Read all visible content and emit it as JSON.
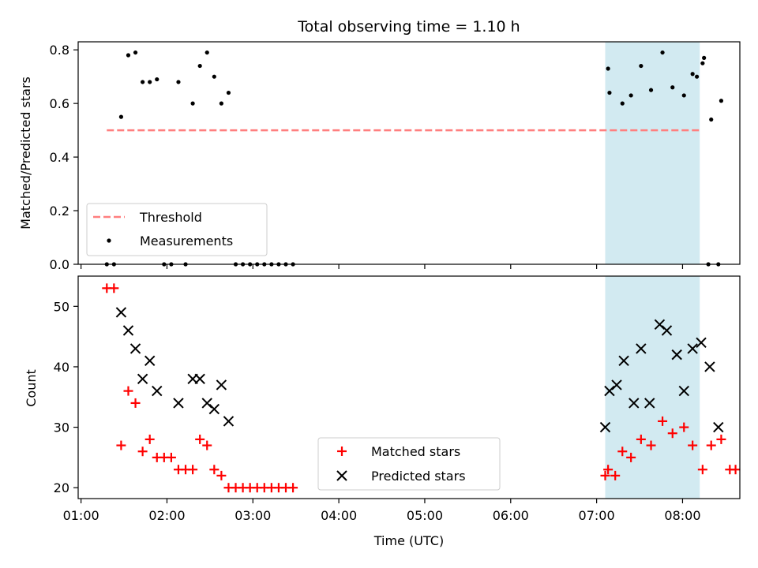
{
  "chart_data": [
    {
      "type": "scatter",
      "title": "Total observing time = 1.10 h",
      "xlabel": "",
      "ylabel": "Matched/Predicted stars",
      "ylim": [
        0,
        0.83
      ],
      "yticks": [
        "0.0",
        "0.2",
        "0.4",
        "0.6",
        "0.8"
      ],
      "ytick_values": [
        0.0,
        0.2,
        0.4,
        0.6,
        0.8
      ],
      "xlim": [
        "00:58",
        "08:40"
      ],
      "shaded_span": [
        "07:06",
        "08:12"
      ],
      "shaded_color": "#add8e6",
      "threshold": {
        "name": "Threshold",
        "value": 0.5,
        "x_start": "01:18",
        "x_end": "08:12",
        "color": "#ff7f7f"
      },
      "series": [
        {
          "name": "Measurements",
          "color": "#000000",
          "x": [
            "01:18",
            "01:23",
            "01:28",
            "01:33",
            "01:38",
            "01:43",
            "01:48",
            "01:53",
            "01:58",
            "02:03",
            "02:08",
            "02:13",
            "02:18",
            "02:23",
            "02:28",
            "02:33",
            "02:38",
            "02:43",
            "02:48",
            "02:53",
            "02:58",
            "03:03",
            "03:08",
            "03:13",
            "03:18",
            "03:23",
            "03:28",
            "07:08",
            "07:09",
            "07:18",
            "07:24",
            "07:31",
            "07:38",
            "07:46",
            "07:53",
            "08:01",
            "08:07",
            "08:14",
            "08:20",
            "08:27"
          ],
          "y": [
            0.0,
            0.0,
            0.55,
            0.78,
            0.79,
            0.68,
            0.68,
            0.69,
            0.0,
            0.0,
            0.68,
            0.0,
            0.6,
            0.74,
            0.79,
            0.7,
            0.6,
            0.64,
            0.0,
            0.0,
            0.0,
            0.0,
            0.0,
            0.0,
            0.0,
            0.0,
            0.0,
            0.73,
            0.64,
            0.6,
            0.63,
            0.74,
            0.65,
            0.79,
            0.66,
            0.63,
            0.71,
            0.75,
            0.54,
            0.61
          ],
          "extra_x": [
            "08:10",
            "08:15",
            "08:18",
            "08:25"
          ],
          "extra_y": [
            0.7,
            0.77,
            0.0,
            0.0
          ]
        }
      ],
      "legend": {
        "position": "lower-left",
        "entries": [
          "Threshold",
          "Measurements"
        ]
      }
    },
    {
      "type": "scatter",
      "title": "",
      "xlabel": "Time (UTC)",
      "ylabel": "Count",
      "ylim": [
        18.2,
        55
      ],
      "yticks": [
        "20",
        "30",
        "40",
        "50"
      ],
      "ytick_values": [
        20,
        30,
        40,
        50
      ],
      "xlim": [
        "00:58",
        "08:40"
      ],
      "xticks": [
        "01:00",
        "02:00",
        "03:00",
        "04:00",
        "05:00",
        "06:00",
        "07:00",
        "08:00"
      ],
      "shaded_span": [
        "07:06",
        "08:12"
      ],
      "shaded_color": "#add8e6",
      "series": [
        {
          "name": "Matched stars",
          "marker": "plus",
          "color": "#ff0000",
          "x": [
            "01:18",
            "01:23",
            "01:28",
            "01:33",
            "01:38",
            "01:43",
            "01:48",
            "01:53",
            "01:58",
            "02:03",
            "02:08",
            "02:13",
            "02:18",
            "02:23",
            "02:28",
            "02:33",
            "02:38",
            "02:43",
            "02:48",
            "02:53",
            "02:58",
            "03:03",
            "03:08",
            "03:13",
            "03:18",
            "03:23",
            "03:28",
            "07:06",
            "07:08",
            "07:13",
            "07:18",
            "07:24",
            "07:31",
            "07:38",
            "07:46",
            "07:53",
            "08:01",
            "08:07",
            "08:14",
            "08:20",
            "08:27",
            "08:33"
          ],
          "y": [
            53,
            53,
            27,
            36,
            34,
            26,
            28,
            25,
            25,
            25,
            23,
            23,
            23,
            28,
            27,
            23,
            22,
            20,
            20,
            20,
            20,
            20,
            20,
            20,
            20,
            20,
            20,
            22,
            23,
            22,
            26,
            25,
            28,
            27,
            31,
            29,
            30,
            27,
            23,
            27,
            28,
            23
          ]
        },
        {
          "name": "Predicted stars",
          "marker": "x",
          "color": "#000000",
          "x": [
            "01:28",
            "01:33",
            "01:38",
            "01:43",
            "01:48",
            "01:53",
            "02:08",
            "02:18",
            "02:23",
            "02:28",
            "02:33",
            "02:38",
            "02:43",
            "07:06",
            "07:09",
            "07:14",
            "07:19",
            "07:26",
            "07:31",
            "07:37",
            "07:44",
            "07:49",
            "07:56",
            "08:01",
            "08:07",
            "08:13",
            "08:19"
          ],
          "y": [
            49,
            46,
            43,
            38,
            41,
            36,
            34,
            38,
            38,
            34,
            33,
            37,
            31,
            30,
            36,
            37,
            41,
            34,
            43,
            34,
            47,
            46,
            42,
            36,
            43,
            44,
            40
          ]
        }
      ],
      "extra_series_points": {
        "matched_extra_x": [
          "08:37"
        ],
        "matched_extra_y": [
          23
        ],
        "predicted_extra_x": [
          "08:25"
        ],
        "predicted_extra_y": [
          30
        ]
      },
      "legend": {
        "position": "lower-center",
        "entries": [
          "Matched stars",
          "Predicted stars"
        ]
      }
    }
  ]
}
